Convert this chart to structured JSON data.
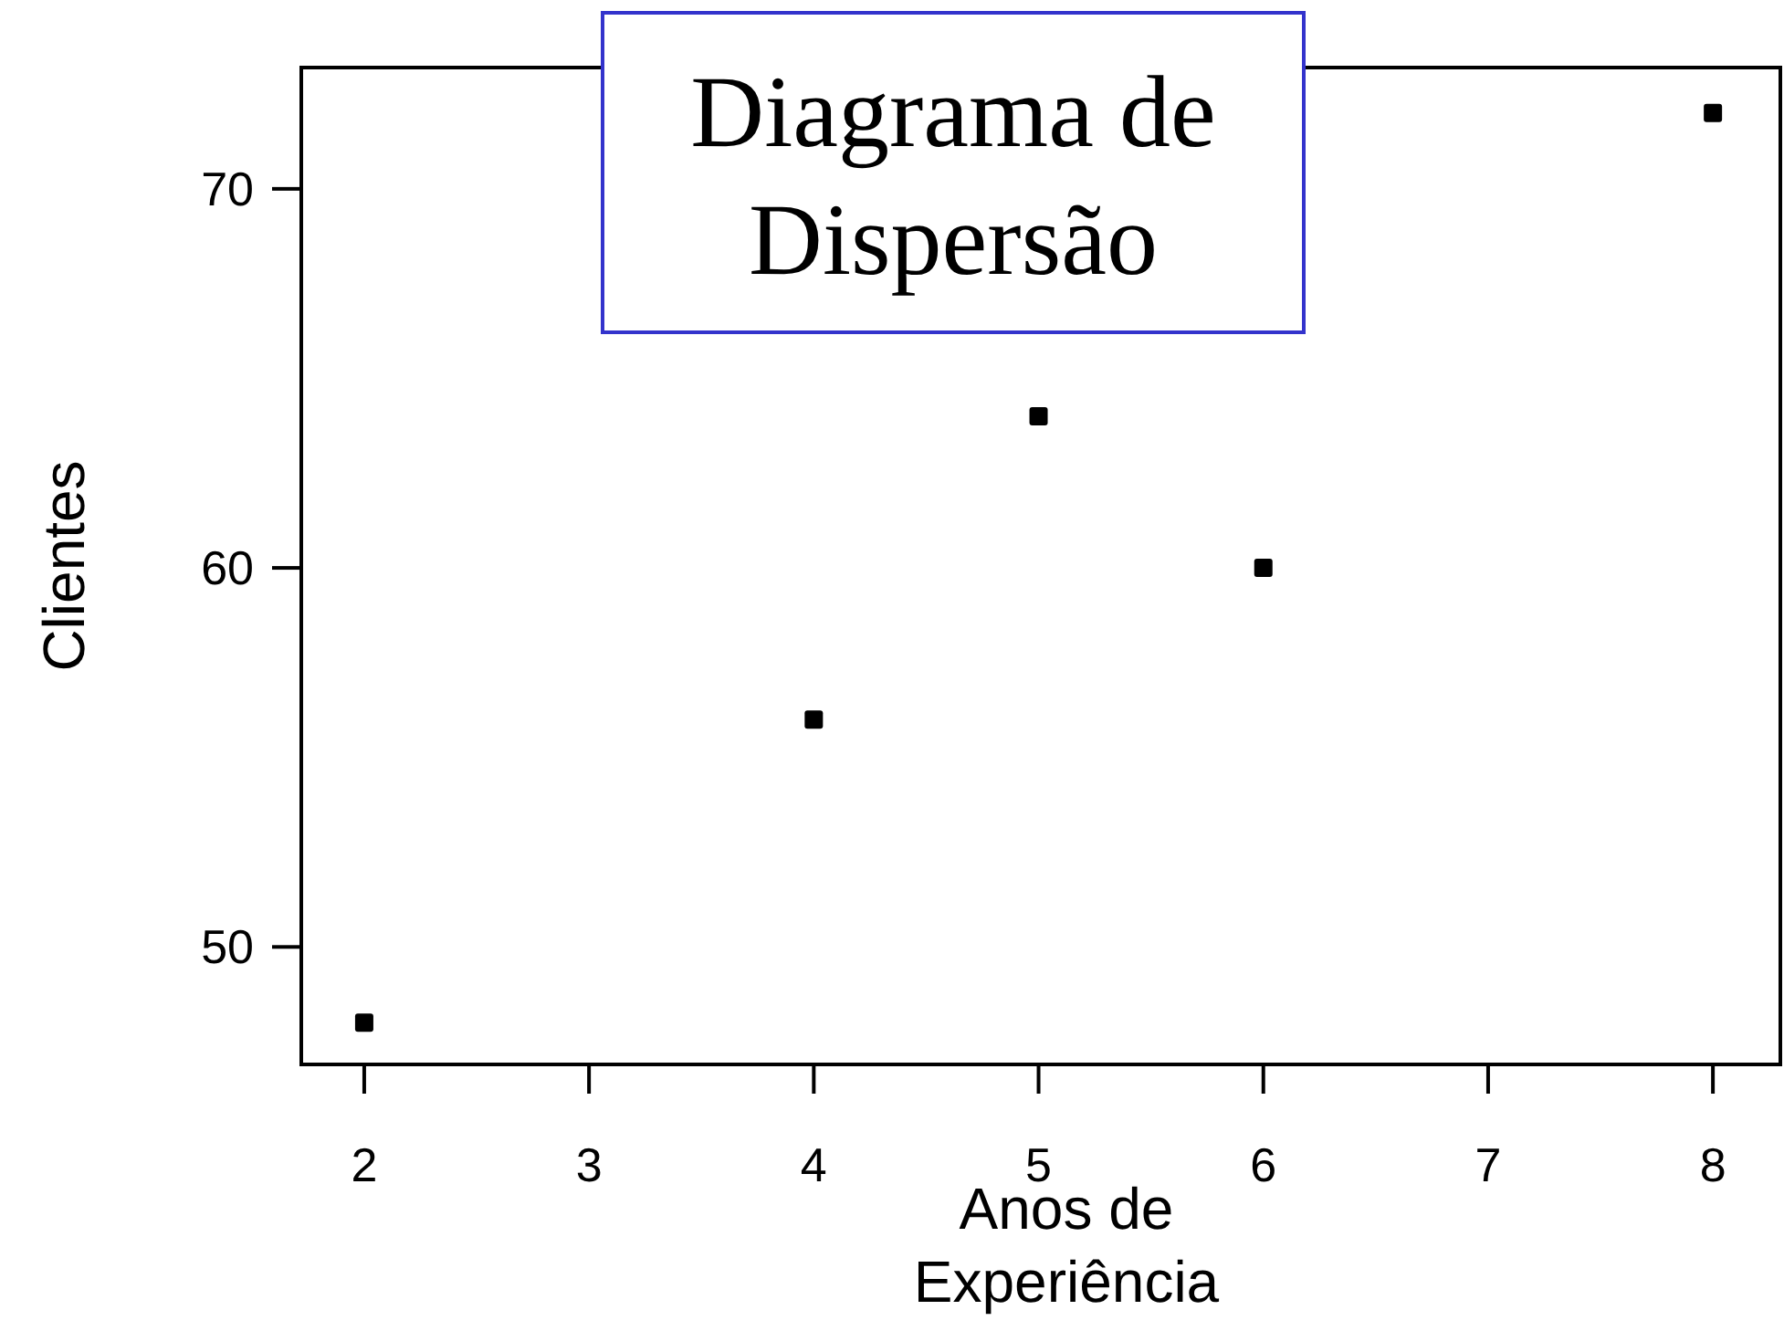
{
  "chart_data": {
    "type": "scatter",
    "title": "Diagrama de Dispersão",
    "xlabel": "Anos de Experiência",
    "ylabel": "Clientes",
    "x": [
      2,
      4,
      5,
      6,
      8
    ],
    "values": [
      48,
      56,
      64,
      60,
      72
    ],
    "color": "#000000",
    "marker": "square",
    "grid": false,
    "xlim": [
      1.72,
      8.3
    ],
    "ylim": [
      46.9,
      73.2
    ],
    "xticks": [
      2,
      3,
      4,
      5,
      6,
      7,
      8
    ],
    "yticks": [
      50,
      60,
      70
    ]
  }
}
